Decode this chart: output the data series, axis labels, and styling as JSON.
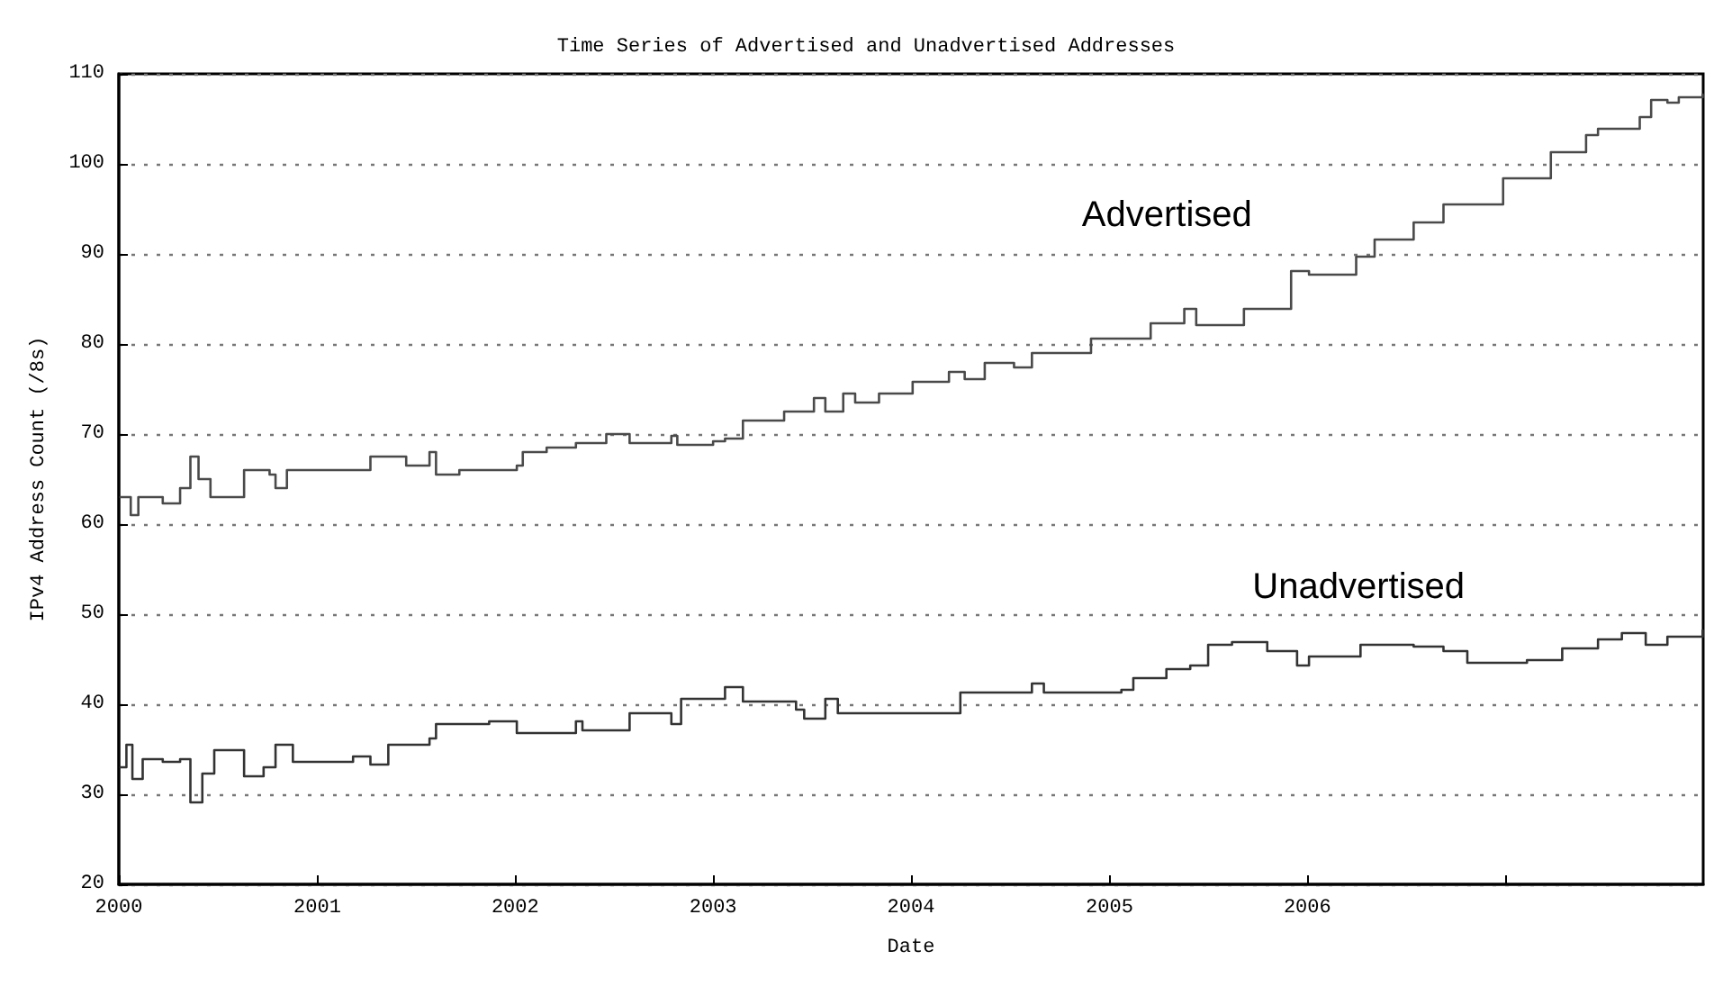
{
  "chart_data": {
    "type": "step",
    "title": "Time Series of Advertised and Unadvertised Addresses",
    "xlabel": "Date",
    "ylabel": "IPv4 Address Count (/8s)",
    "xlim": [
      "2000-01-01",
      "2008-01-01"
    ],
    "xticks": [
      "2000",
      "2001",
      "2002",
      "2003",
      "2004",
      "2005",
      "2006",
      {
        "value": "2007",
        "label": null
      }
    ],
    "ylim": [
      20,
      110
    ],
    "yticks": [
      20,
      30,
      40,
      50,
      60,
      70,
      80,
      90,
      100,
      110
    ],
    "grid": "y",
    "legend": false,
    "marker": "none",
    "line_style": "solid",
    "series": [
      {
        "name": "Advertised",
        "color": "#4a4a4a",
        "x": [
          "2000-01-04",
          "2000-01-23",
          "2000-02-06",
          "2000-03-22",
          "2000-04-23",
          "2000-05-12",
          "2000-05-27",
          "2000-06-18",
          "2000-07-31",
          "2000-08-19",
          "2000-10-05",
          "2000-10-16",
          "2000-11-06",
          "2001-03-08",
          "2001-04-09",
          "2001-06-14",
          "2001-07-27",
          "2001-08-08",
          "2001-09-20",
          "2002-01-04",
          "2002-01-15",
          "2002-02-28",
          "2002-04-23",
          "2002-06-18",
          "2002-07-31",
          "2002-10-16",
          "2002-10-27",
          "2003-01-01",
          "2003-01-23",
          "2003-02-25",
          "2003-05-12",
          "2003-07-06",
          "2003-07-27",
          "2003-08-29",
          "2003-09-20",
          "2003-11-03",
          "2004-01-04",
          "2004-03-11",
          "2004-04-09",
          "2004-05-16",
          "2004-07-09",
          "2004-08-11",
          "2004-11-28",
          "2005-03-18",
          "2005-05-19",
          "2005-06-10",
          "2005-07-02",
          "2005-09-06",
          "2005-12-02",
          "2006-01-04",
          "2006-04-01",
          "2006-05-05",
          "2006-07-16",
          "2006-09-09",
          "2006-12-28",
          "2007-03-26",
          "2007-05-30",
          "2007-06-21",
          "2007-09-06",
          "2007-09-27",
          "2007-10-27",
          "2007-11-17",
          "2007-12-31"
        ],
        "values": [
          63,
          61,
          63,
          62.3,
          64,
          67.5,
          65,
          63,
          63,
          66,
          65.5,
          64,
          66,
          66,
          67.5,
          66.5,
          68,
          65.5,
          66,
          66.5,
          68,
          68.5,
          69,
          70,
          69,
          69.8,
          68.8,
          69.2,
          69.5,
          71.5,
          72.5,
          74,
          72.5,
          74.5,
          73.5,
          74.5,
          75.8,
          76.9,
          76.1,
          77.9,
          77.4,
          79,
          80.6,
          82.3,
          83.9,
          82.1,
          82.1,
          83.9,
          88.1,
          87.7,
          89.7,
          91.6,
          93.5,
          95.5,
          98.4,
          101.3,
          103.2,
          103.9,
          105.2,
          107.1,
          106.8,
          107.4,
          107.7
        ]
      },
      {
        "name": "Unadvertised",
        "color": "#333333",
        "x": [
          "2000-01-04",
          "2000-01-15",
          "2000-01-26",
          "2000-02-14",
          "2000-03-22",
          "2000-04-23",
          "2000-05-12",
          "2000-06-03",
          "2000-06-25",
          "2000-08-08",
          "2000-08-19",
          "2000-09-24",
          "2000-10-16",
          "2000-11-17",
          "2001-03-08",
          "2001-04-09",
          "2001-05-12",
          "2001-07-27",
          "2001-08-08",
          "2001-10-12",
          "2001-11-14",
          "2002-01-04",
          "2002-04-23",
          "2002-05-05",
          "2002-07-31",
          "2002-10-16",
          "2002-11-03",
          "2003-01-23",
          "2003-02-25",
          "2003-06-03",
          "2003-06-18",
          "2003-07-27",
          "2003-08-19",
          "2003-11-14",
          "2004-02-28",
          "2004-04-01",
          "2004-06-07",
          "2004-08-11",
          "2004-09-02",
          "2005-01-23",
          "2005-02-14",
          "2005-04-16",
          "2005-05-30",
          "2005-07-02",
          "2005-08-15",
          "2005-10-19",
          "2005-12-13",
          "2006-01-04",
          "2006-03-11",
          "2006-04-09",
          "2006-07-16",
          "2006-09-09",
          "2006-10-23",
          "2007-02-10",
          "2007-04-16",
          "2007-06-21",
          "2007-08-04",
          "2007-09-17",
          "2007-10-27",
          "2007-12-31"
        ],
        "values": [
          33,
          35.5,
          31.7,
          33.9,
          33.6,
          33.9,
          29.1,
          32.3,
          34.9,
          34.9,
          32,
          33,
          35.5,
          33.6,
          34.2,
          33.3,
          35.5,
          36.2,
          37.8,
          37.8,
          38.1,
          36.8,
          38.1,
          37.1,
          39,
          37.8,
          40.6,
          41.9,
          40.3,
          39.4,
          38.4,
          40.6,
          39,
          39,
          39,
          41.3,
          41.3,
          42.3,
          41.3,
          41.6,
          42.9,
          43.9,
          44.3,
          46.6,
          46.9,
          45.9,
          44.3,
          45.3,
          45.3,
          46.6,
          46.4,
          45.9,
          44.6,
          44.9,
          46.2,
          47.2,
          47.9,
          46.6,
          47.5,
          48.2
        ]
      }
    ]
  }
}
